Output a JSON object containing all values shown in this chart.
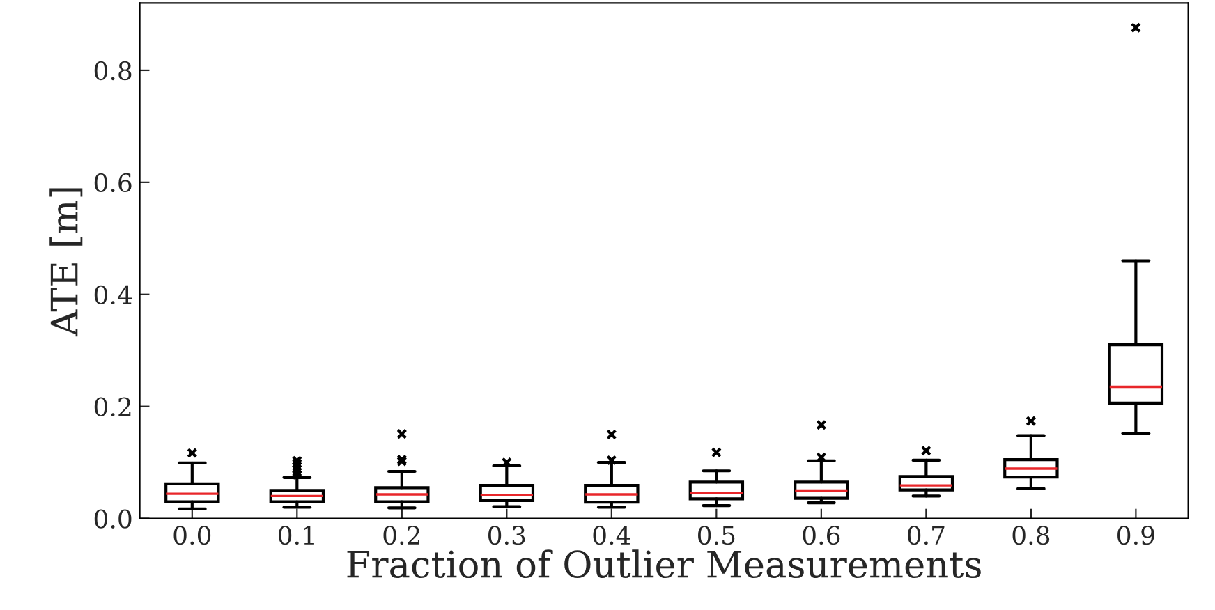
{
  "chart_data": {
    "type": "box",
    "xlabel": "Fraction of Outlier Measurements",
    "ylabel": "ATE [m]",
    "categories": [
      "0.0",
      "0.1",
      "0.2",
      "0.3",
      "0.4",
      "0.5",
      "0.6",
      "0.7",
      "0.8",
      "0.9"
    ],
    "boxes": [
      {
        "low": 0.017,
        "q1": 0.03,
        "median": 0.044,
        "q3": 0.062,
        "high": 0.099,
        "outliers": [
          0.117
        ]
      },
      {
        "low": 0.02,
        "q1": 0.03,
        "median": 0.04,
        "q3": 0.05,
        "high": 0.073,
        "outliers": [
          0.078,
          0.083,
          0.088,
          0.093,
          0.098,
          0.103
        ]
      },
      {
        "low": 0.019,
        "q1": 0.03,
        "median": 0.043,
        "q3": 0.055,
        "high": 0.084,
        "outliers": [
          0.102,
          0.105,
          0.151
        ]
      },
      {
        "low": 0.021,
        "q1": 0.032,
        "median": 0.042,
        "q3": 0.059,
        "high": 0.094,
        "outliers": [
          0.1
        ]
      },
      {
        "low": 0.02,
        "q1": 0.029,
        "median": 0.043,
        "q3": 0.059,
        "high": 0.1,
        "outliers": [
          0.104,
          0.15
        ]
      },
      {
        "low": 0.023,
        "q1": 0.035,
        "median": 0.046,
        "q3": 0.065,
        "high": 0.085,
        "outliers": [
          0.118
        ]
      },
      {
        "low": 0.028,
        "q1": 0.036,
        "median": 0.05,
        "q3": 0.065,
        "high": 0.103,
        "outliers": [
          0.109,
          0.167
        ]
      },
      {
        "low": 0.04,
        "q1": 0.051,
        "median": 0.059,
        "q3": 0.075,
        "high": 0.104,
        "outliers": [
          0.121
        ]
      },
      {
        "low": 0.053,
        "q1": 0.074,
        "median": 0.089,
        "q3": 0.105,
        "high": 0.148,
        "outliers": [
          0.174
        ]
      },
      {
        "low": 0.152,
        "q1": 0.206,
        "median": 0.235,
        "q3": 0.31,
        "high": 0.46,
        "outliers": [
          0.876
        ]
      }
    ],
    "color": "#000000",
    "marker": "cross",
    "ylim": [
      0,
      0.92
    ],
    "yticks": [
      {
        "value": 0,
        "label": "0.0"
      },
      0.2,
      0.4,
      0.6,
      0.8
    ],
    "grid": false,
    "legend": false
  }
}
